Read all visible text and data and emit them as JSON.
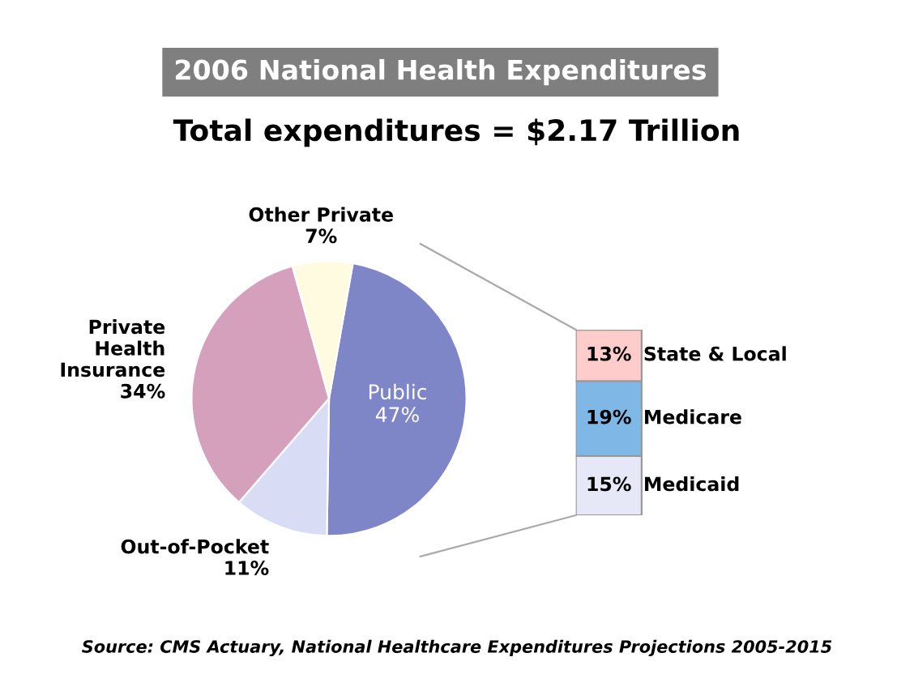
{
  "chart_data": [
    {
      "type": "pie",
      "title": "2006 National Health Expenditures",
      "subtitle": "Total expenditures = $2.17 Trillion",
      "categories": [
        "Public",
        "Out-of-Pocket",
        "Private Health Insurance",
        "Other Private"
      ],
      "values": [
        47,
        11,
        34,
        7
      ],
      "colors": [
        "#7f86c8",
        "#d9dcf5",
        "#d4a0bc",
        "#fffbe0"
      ],
      "value_labels": [
        "47%",
        "11%",
        "34%",
        "7%"
      ],
      "annotations": [
        "Source: CMS Actuary, National Healthcare Expenditures Projections 2005-2015"
      ]
    },
    {
      "type": "bar",
      "stacked": true,
      "categories": [
        null
      ],
      "series": [
        {
          "name": "Medicaid",
          "color": "#e6e8f8",
          "values": [
            15
          ],
          "value_labels": [
            "15%"
          ]
        },
        {
          "name": "Medicare",
          "color": "#7fb8e6",
          "values": [
            19
          ],
          "value_labels": [
            "19%"
          ]
        },
        {
          "name": "State & Local",
          "color": "#ffcccc",
          "values": [
            13
          ],
          "value_labels": [
            "13%"
          ]
        }
      ]
    }
  ]
}
